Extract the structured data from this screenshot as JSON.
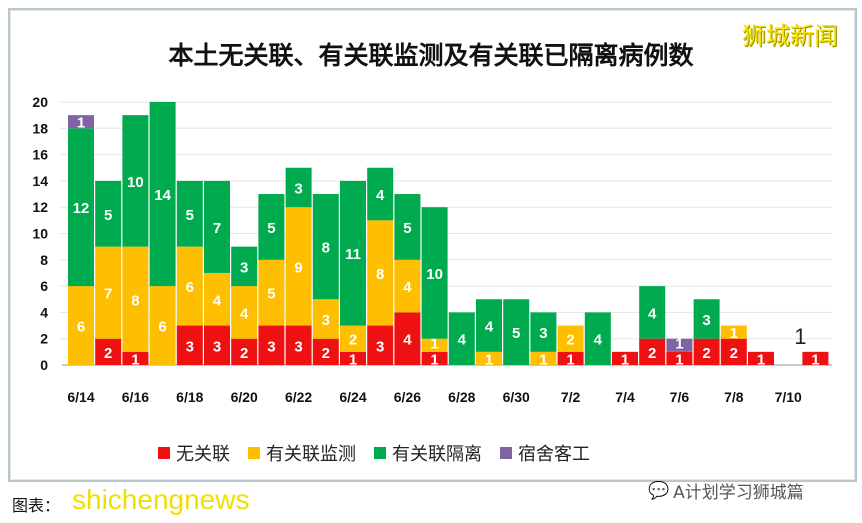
{
  "chart_data": {
    "type": "bar",
    "stacked": true,
    "title": "本土无关联、有关联监测及有关联已隔离病例数",
    "categories": [
      "6/14",
      "6/15",
      "6/16",
      "6/17",
      "6/18",
      "6/19",
      "6/20",
      "6/21",
      "6/22",
      "6/23",
      "6/24",
      "6/25",
      "6/26",
      "6/27",
      "6/28",
      "6/29",
      "6/30",
      "7/1",
      "7/2",
      "7/3",
      "7/4",
      "7/5",
      "7/6",
      "7/7",
      "7/8",
      "7/9",
      "7/10",
      "7/11"
    ],
    "x_tick_labels": [
      "6/14",
      "6/16",
      "6/18",
      "6/20",
      "6/22",
      "6/24",
      "6/26",
      "6/28",
      "6/30",
      "7/2",
      "7/4",
      "7/6",
      "7/8",
      "7/10"
    ],
    "series": [
      {
        "name": "无关联",
        "color": "#ee1111",
        "values": [
          0,
          2,
          1,
          0,
          3,
          3,
          2,
          3,
          3,
          2,
          1,
          3,
          4,
          1,
          0,
          0,
          0,
          0,
          1,
          0,
          1,
          2,
          1,
          2,
          2,
          1,
          0,
          1
        ]
      },
      {
        "name": "有关联监测",
        "color": "#fdbf00",
        "values": [
          6,
          7,
          8,
          6,
          6,
          4,
          4,
          5,
          9,
          3,
          2,
          8,
          4,
          1,
          0,
          1,
          0,
          1,
          2,
          0,
          0,
          0,
          0,
          0,
          1,
          0,
          0,
          0
        ]
      },
      {
        "name": "有关联隔离",
        "color": "#00aa4f",
        "values": [
          12,
          5,
          10,
          14,
          5,
          7,
          3,
          5,
          3,
          8,
          11,
          4,
          5,
          10,
          4,
          4,
          5,
          3,
          0,
          4,
          0,
          4,
          0,
          3,
          0,
          0,
          0,
          0
        ]
      },
      {
        "name": "宿舍客工",
        "color": "#8064a2",
        "values": [
          1,
          0,
          0,
          0,
          0,
          0,
          0,
          0,
          0,
          0,
          0,
          0,
          0,
          0,
          0,
          0,
          0,
          0,
          0,
          0,
          0,
          0,
          1,
          0,
          0,
          0,
          0,
          0
        ]
      }
    ],
    "total_annotation": {
      "category": "7/11",
      "text": "1"
    },
    "ylim": [
      0,
      20
    ],
    "yticks": [
      0,
      2,
      4,
      6,
      8,
      10,
      12,
      14,
      16,
      18,
      20
    ],
    "grid": true,
    "legend": "bottom"
  },
  "watermark_top": "狮城新闻",
  "source": "图表：",
  "watermark_bottom": "shichengnews",
  "account": "A计划学习狮城篇"
}
